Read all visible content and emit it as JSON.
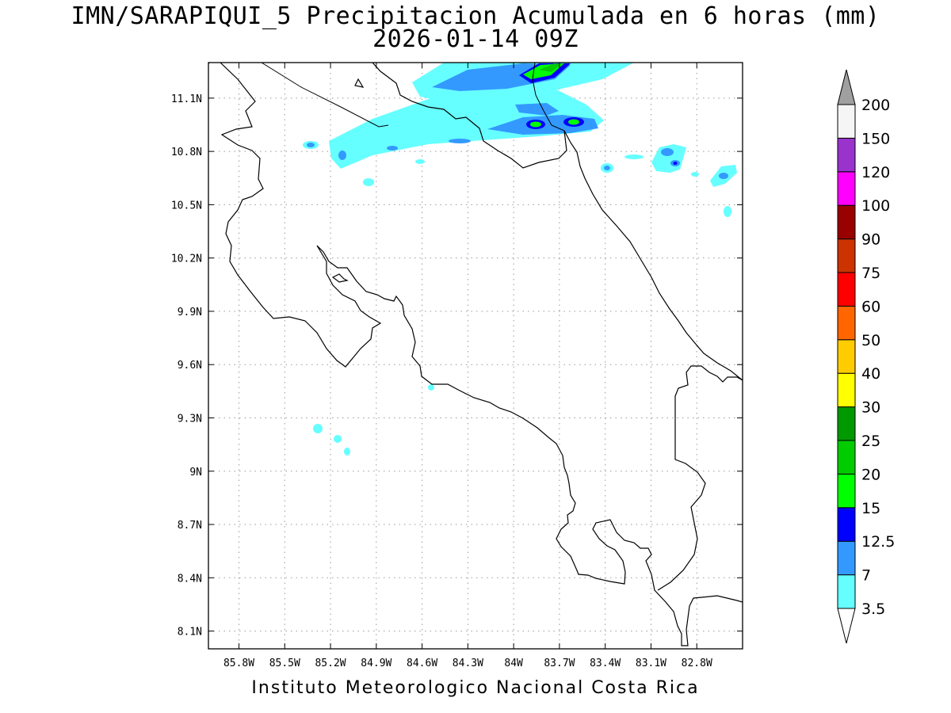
{
  "title": {
    "line1": "IMN/SARAPIQUI_5 Precipitacion Acumulada en 6 horas (mm)",
    "line2": "2026-01-14 09Z"
  },
  "footer": "Instituto Meteorologico Nacional Costa Rica",
  "map": {
    "lon_range": [
      -86.0,
      -82.5
    ],
    "lat_range": [
      8.0,
      11.3
    ],
    "lon_ticks": [
      "85.8W",
      "85.5W",
      "85.2W",
      "84.9W",
      "84.6W",
      "84.3W",
      "84W",
      "83.7W",
      "83.4W",
      "83.1W",
      "82.8W"
    ],
    "lon_tick_values": [
      -85.8,
      -85.5,
      -85.2,
      -84.9,
      -84.6,
      -84.3,
      -84.0,
      -83.7,
      -83.4,
      -83.1,
      -82.8
    ],
    "lat_ticks": [
      "11.1N",
      "10.8N",
      "10.5N",
      "10.2N",
      "9.9N",
      "9.6N",
      "9.3N",
      "9N",
      "8.7N",
      "8.4N",
      "8.1N"
    ],
    "lat_tick_values": [
      11.1,
      10.8,
      10.5,
      10.2,
      9.9,
      9.6,
      9.3,
      9.0,
      8.7,
      8.4,
      8.1
    ],
    "grid": "dotted"
  },
  "legend": {
    "levels": [
      "3.5",
      "7",
      "12.5",
      "15",
      "20",
      "25",
      "30",
      "40",
      "50",
      "60",
      "75",
      "90",
      "100",
      "120",
      "150",
      "200"
    ],
    "colors": [
      "#66ffff",
      "#3399ff",
      "#0000ff",
      "#00ff00",
      "#00cc00",
      "#009900",
      "#ffff00",
      "#ffcc00",
      "#ff6600",
      "#ff0000",
      "#cc3300",
      "#990000",
      "#ff00ff",
      "#9933cc",
      "#f5f5f5"
    ],
    "min_arrow_color": "#ffffff",
    "max_arrow_color": "#a0a0a0"
  }
}
